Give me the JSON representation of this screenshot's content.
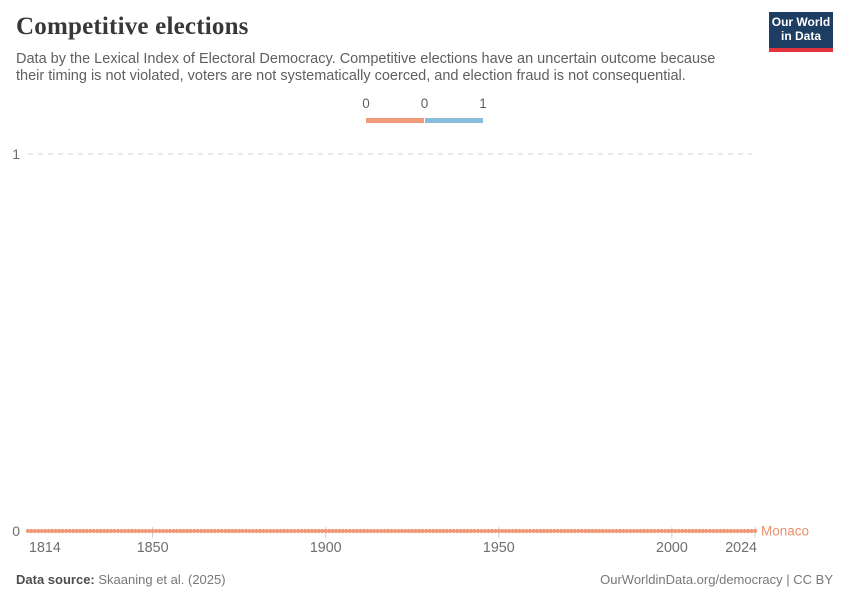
{
  "header": {
    "title": "Competitive elections",
    "subtitle": "Data by the Lexical Index of Electoral Democracy. Competitive elections have an uncertain outcome because their timing is not violated, voters are not systematically coerced, and election fraud is not consequential.",
    "logo": {
      "lines": [
        "Our World",
        "in Data"
      ],
      "bg_color": "#1d3d63",
      "stripe_color": "#e0333c"
    }
  },
  "chart_data": {
    "type": "line",
    "title": "Competitive elections",
    "xlim": [
      1814,
      2024
    ],
    "ylim": [
      0,
      1
    ],
    "x_ticks": [
      1814,
      1850,
      1900,
      1950,
      2000,
      2024
    ],
    "y_ticks": [
      0,
      1
    ],
    "grid": "dashed horizontal gridlines at y ticks",
    "series": [
      {
        "name": "Monaco",
        "color": "#ef9a76",
        "label_color": "#e8906b",
        "marker": "dot",
        "year_start": 1814,
        "year_end": 2024,
        "annual_step": 1,
        "constant_value": 0
      }
    ],
    "legend": {
      "labels": [
        "0",
        "0",
        "1"
      ],
      "bins": [
        {
          "from": "0",
          "to": "0",
          "color": "#f09a79"
        },
        {
          "from": "0",
          "to": "1",
          "color": "#88bedb"
        }
      ],
      "position": "top-center"
    },
    "axis_color": "#6e6e6e",
    "grid_color": "#d6d6d6",
    "tick_color": "#cfcfcf"
  },
  "footer": {
    "source_label": "Data source:",
    "source_value": "Skaaning et al. (2025)",
    "attribution": "OurWorldinData.org/democracy | CC BY"
  }
}
